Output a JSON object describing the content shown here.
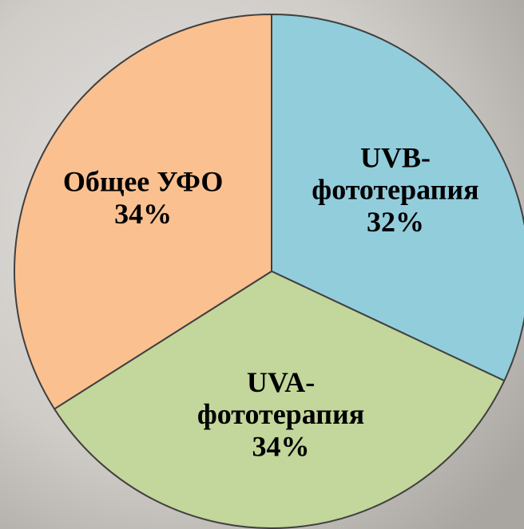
{
  "chart_data": {
    "type": "pie",
    "categories": [
      "UVB-фототерапия",
      "UVA-фототерапия",
      "Общее УФО"
    ],
    "values": [
      32,
      34,
      34
    ],
    "value_labels": [
      "32%",
      "34%",
      "34%"
    ],
    "colors": [
      "#92cddc",
      "#c3d69b",
      "#fac090"
    ]
  }
}
